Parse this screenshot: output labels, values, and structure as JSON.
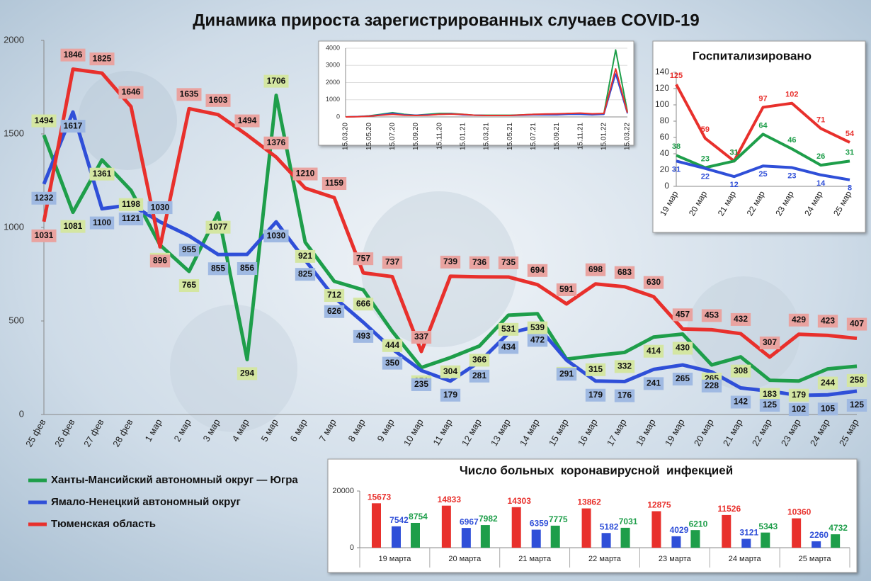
{
  "chart_data": [
    {
      "type": "line",
      "title": "Динамика прироста зарегистрированных случаев COVID-19",
      "categories": [
        "25 фев",
        "26 фев",
        "27 фев",
        "28 фев",
        "1 мар",
        "2 мар",
        "3 мар",
        "4 мар",
        "5 мар",
        "6 мар",
        "7 мар",
        "8 мар",
        "9 мар",
        "10 мар",
        "11 мар",
        "12 мар",
        "13 мар",
        "14 мар",
        "15 мар",
        "16 мар",
        "17 мар",
        "18 мар",
        "19 мар",
        "20 мар",
        "21 мар",
        "22 мар",
        "23 мар",
        "24 мар",
        "25 мар"
      ],
      "series": [
        {
          "name": "Ханты-Мансийский автономный округ — Югра",
          "color": "#1e9e4a",
          "values": [
            1494,
            1081,
            1361,
            1198,
            906,
            765,
            1077,
            294,
            1706,
            921,
            712,
            666,
            444,
            251,
            304,
            366,
            531,
            539,
            296,
            315,
            332,
            414,
            430,
            265,
            308,
            183,
            179,
            244,
            258
          ]
        },
        {
          "name": "Ямало-Ненецкий автономный округ",
          "color": "#2f4fd8",
          "values": [
            1232,
            1617,
            1100,
            1121,
            1030,
            955,
            855,
            856,
            1030,
            825,
            626,
            493,
            350,
            235,
            179,
            281,
            434,
            472,
            291,
            179,
            176,
            241,
            265,
            228,
            142,
            125,
            102,
            105,
            125
          ]
        },
        {
          "name": "Тюменская область",
          "color": "#e8302c",
          "values": [
            1031,
            1846,
            1825,
            1646,
            896,
            1635,
            1603,
            1494,
            1376,
            1210,
            1159,
            757,
            737,
            337,
            739,
            736,
            735,
            694,
            591,
            698,
            683,
            630,
            457,
            453,
            432,
            307,
            429,
            423,
            407
          ]
        }
      ],
      "ylim": [
        0,
        2000
      ],
      "yticks": [
        0,
        500,
        1000,
        1500,
        2000
      ],
      "grid": false,
      "legend": "bottom-left"
    },
    {
      "type": "line",
      "categories": [
        "15.03.20",
        null,
        "15.05.20",
        null,
        "15.07.20",
        null,
        "15.09.20",
        null,
        "15.11.20",
        null,
        "15.01.21",
        null,
        "15.03.21",
        null,
        "15.05.21",
        null,
        "15.07.21",
        null,
        "15.09.21",
        null,
        "15.11.21",
        null,
        "15.01.22",
        null,
        "15.03.22"
      ],
      "series": [
        {
          "color": "#1e9e4a",
          "values": [
            0,
            20,
            60,
            150,
            250,
            150,
            100,
            150,
            200,
            200,
            150,
            100,
            100,
            100,
            100,
            120,
            150,
            150,
            150,
            200,
            200,
            150,
            200,
            3900,
            300
          ]
        },
        {
          "color": "#2f4fd8",
          "values": [
            0,
            20,
            50,
            120,
            200,
            120,
            100,
            120,
            150,
            180,
            120,
            100,
            80,
            80,
            80,
            100,
            120,
            120,
            120,
            150,
            150,
            120,
            150,
            2500,
            200
          ]
        },
        {
          "color": "#e8302c",
          "values": [
            0,
            10,
            40,
            100,
            150,
            100,
            80,
            100,
            150,
            160,
            150,
            100,
            80,
            80,
            80,
            120,
            150,
            170,
            180,
            200,
            220,
            180,
            200,
            2800,
            250
          ]
        }
      ],
      "ylim": [
        0,
        4000
      ],
      "yticks": [
        0,
        1000,
        2000,
        3000,
        4000
      ],
      "grid": true
    },
    {
      "type": "line",
      "title": "Госпитализировано",
      "categories": [
        "19 мар",
        "20 мар",
        "21 мар",
        "22 мар",
        "23 мар",
        "24 мар",
        "25 мар"
      ],
      "series": [
        {
          "color": "#e8302c",
          "values": [
            125,
            59,
            31,
            97,
            102,
            71,
            54
          ]
        },
        {
          "color": "#1e9e4a",
          "values": [
            38,
            23,
            31,
            64,
            46,
            26,
            31
          ]
        },
        {
          "color": "#2f4fd8",
          "values": [
            31,
            22,
            12,
            25,
            23,
            14,
            8
          ]
        }
      ],
      "ylim": [
        0,
        140
      ],
      "yticks": [
        0,
        20,
        40,
        60,
        80,
        100,
        120,
        140
      ],
      "grid": false
    },
    {
      "type": "bar",
      "title": "Число больных  коронавирусной  инфекцией",
      "categories": [
        "19 марта",
        "20 марта",
        "21 марта",
        "22 марта",
        "23 марта",
        "24 марта",
        "25 марта"
      ],
      "series": [
        {
          "color": "#e8302c",
          "values": [
            15673,
            14833,
            14303,
            13862,
            12875,
            11526,
            10360
          ]
        },
        {
          "color": "#2f4fd8",
          "values": [
            7542,
            6967,
            6359,
            5182,
            4029,
            3121,
            2260
          ]
        },
        {
          "color": "#1e9e4a",
          "values": [
            8754,
            7982,
            7775,
            7031,
            6210,
            5343,
            4732
          ]
        }
      ],
      "ylim": [
        0,
        20000
      ],
      "yticks": [
        0,
        20000
      ],
      "grid": false
    }
  ]
}
